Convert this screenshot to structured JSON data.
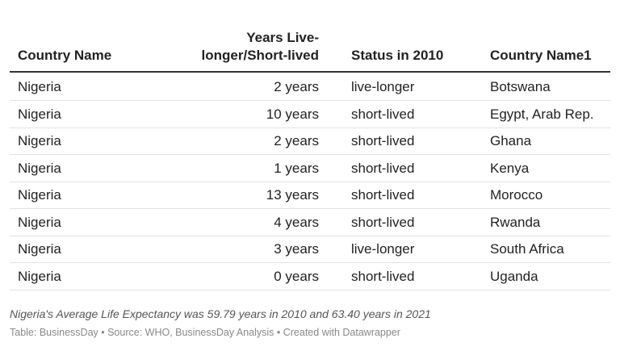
{
  "table": {
    "headers": [
      "Country Name",
      "Years Live-longer/Short-lived",
      "Status in 2010",
      "Country Name1"
    ],
    "rows": [
      [
        "Nigeria",
        "2 years",
        "live-longer",
        "Botswana"
      ],
      [
        "Nigeria",
        "10 years",
        "short-lived",
        "Egypt, Arab Rep."
      ],
      [
        "Nigeria",
        "2 years",
        "short-lived",
        "Ghana"
      ],
      [
        "Nigeria",
        "1 years",
        "short-lived",
        "Kenya"
      ],
      [
        "Nigeria",
        "13 years",
        "short-lived",
        "Morocco"
      ],
      [
        "Nigeria",
        "4 years",
        "short-lived",
        "Rwanda"
      ],
      [
        "Nigeria",
        "3 years",
        "live-longer",
        "South Africa"
      ],
      [
        "Nigeria",
        "0 years",
        "short-lived",
        "Uganda"
      ]
    ]
  },
  "notes": "Nigeria's Average Life Expectancy was 59.79 years in 2010 and 63.40 years in 2021",
  "footer": "Table: BusinessDay • Source: WHO, BusinessDay Analysis • Created with Datawrapper"
}
